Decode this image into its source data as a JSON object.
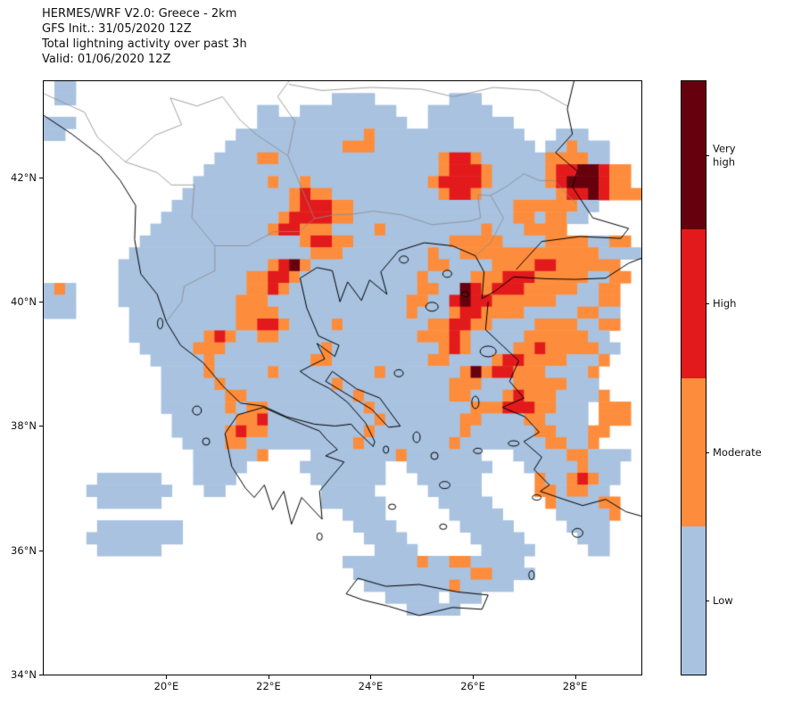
{
  "figure": {
    "title_lines": [
      "HERMES/WRF V2.0: Greece - 2km",
      "GFS Init.: 31/05/2020 12Z",
      "Total lightning activity over past 3h",
      "Valid: 01/06/2020 12Z"
    ]
  },
  "axes": {
    "x_ticks": [
      {
        "label": "20°E",
        "lon": 20
      },
      {
        "label": "22°E",
        "lon": 22
      },
      {
        "label": "24°E",
        "lon": 24
      },
      {
        "label": "26°E",
        "lon": 26
      },
      {
        "label": "28°E",
        "lon": 28
      }
    ],
    "y_ticks": [
      {
        "label": "42°N",
        "lat": 42
      },
      {
        "label": "40°N",
        "lat": 40
      },
      {
        "label": "38°N",
        "lat": 38
      },
      {
        "label": "36°N",
        "lat": 36
      },
      {
        "label": "34°N",
        "lat": 34
      }
    ]
  },
  "colorbar": {
    "segments": [
      {
        "label": "Very\nhigh",
        "color": "#67000d",
        "category": "very_high"
      },
      {
        "label": "High",
        "color": "#e31a1c",
        "category": "high"
      },
      {
        "label": "Moderate",
        "color": "#fd8d3c",
        "category": "moderate"
      },
      {
        "label": "Low",
        "color": "#a8c2e0",
        "category": "low"
      }
    ]
  },
  "chart_data": {
    "type": "heatmap",
    "title": "Total lightning activity over past 3h",
    "model": "HERMES/WRF V2.0: Greece - 2km",
    "init": "GFS Init.: 31/05/2020 12Z",
    "valid": "Valid: 01/06/2020 12Z",
    "legend": [
      "Very high",
      "High",
      "Moderate",
      "Low"
    ],
    "projection": {
      "lon_min": 17.6,
      "lon_max": 29.3,
      "lat_min": 34.0,
      "lat_max": 43.55
    },
    "colors": {
      "l": "#a8c2e0",
      "m": "#fd8d3c",
      "h": "#e31a1c",
      "v": "#67000d"
    },
    "grid": {
      "cols": 56,
      "rows": 50,
      "encoding": "comma separated run-length tokens 'Nc'; c: .=none l=low m=moderate h=high v=very_high",
      "rows_rle": [
        "1.,2l,53.",
        "1.,2l,24.,4l,7.,3l,15.",
        "20.,2l,2.,9l,3.,6l,14.",
        "3l,17.,14l,2.,8l,12.",
        "2l,16.,12l,1m,14l,3.,3l,5.",
        "17.,11l,3m,15l,1.,2l,1m,3l,3.",
        "16.,4l,2m,15l,1m,2h,1m,6l,4m,2l,3.",
        "15.,22l,1m,3h,1m,5l,1m,2h,2v,1h,2m,1.",
        "14.,7l,1m,2l,1m,11l,1m,4h,1m,5l,1m,1h,3v,1h,2m,1.",
        "13.,10l,1m,1h,2m,10l,1m,2h,1m,7l,1m,2h,1v,1h,3m",
        "12.,11l,1m,3h,2m,15l,6m,2l,4.",
        "11.,11l,1m,4h,2m,15l,2m,1l,2m,2l,5.",
        "10.,11l,1m,2h,3m,4l,1m,9l,1m,3l,4m,7.",
        "9.,15l,1m,2h,2m,9l,5m,4l,4m,2l,2m,1.",
        "8.,17l,3m,8l,1m,2l,13m,4l",
        "7.,14l,1m,1h,1v,1m,11l,2m,4l,4m,2h,6m,2.",
        "7.,12l,2m,2h,1m,11l,1m,4l,3m,3h,5m,2l,2m,1.",
        "1l,1m,1l,4.,12l,2m,1h,1m,12l,2m,2l,1v,1h,1m,3h,5m,2l,2m,2.",
        "3l,4.,11l,3m,13l,2m,2l,1h,1v,2h,6m,4l,2m,2.",
        "3l,5.,10l,4m,12l,1m,3l,1m,2h,4m,5l,2m,2l,2.",
        "8.,10l,2m,2h,1m,4l,1m,8l,2m,2h,2m,4l,4m,2l,2m,2.",
        "8.,7l,1m,1h,1m,2l,2m,13l,3m,1h,1m,5l,6m,2l,3.",
        "9.,5l,3m,9l,1m,10l,1m,1h,1m,4l,2m,1h,5m,2l,2.",
        "10.,5l,1m,9l,2m,9l,2m,4l,1m,2h,4m,3l,1m,3.",
        "11.,4l,1m,5l,1m,9l,1m,7l,1m,1v,1m,2h,3m,4l,1m,4.",
        "11.,5l,1m,10l,1m,10l,3m,3l,5m,3l,4.",
        "11.,6l,2m,10l,1m,8l,2m,3l,1m,1h,3m,4l,1m,3.",
        "11.,6l,1m,1l,2m,9l,1m,9l,3m,3h,2m,3l,1.,3m,1.",
        "12.,6l,2m,1h,10l,1m,7l,2m,4l,2m,4l,1.,3m,1.",
        "12.,5l,1m,1h,2m,9l,1m,8l,1m,6l,2m,3l,2m,3.",
        "13.,4l,2m,10l,1m,8l,1m,8l,2m,2l,1m,4.",
        "14.,6l,1m,4.,8l,1m,7l,3.,5l,2m,4l,1.",
        "14.,5l,5.,8l,2.,8l,3.,5l,1m,3l,2.",
        "5.,6l,3.,4l,7.,7l,3.,6l,5.,1m,2l,1m,1h,1m,2l,2.",
        "4.,8l,3.,2l,9.,5l,5.,5l,5.,2m,1l,2m,2l,3.",
        "5.,6l,15.,6l,5.,5l,5.,1m,4l,2m,2.",
        "28.,4l,6.,5l,5.,5l,1m,2.",
        "5.,8l,16.,4l,6.,5l,5.,4l,3.",
        "4.,9l,17.,4l,6.,5l,5.,3l,3.",
        "5.,6l,20.,4l,6.,5l,5.,2l,3.",
        "28.,7l,1m,2l,2m,5l,11.",
        "29.,11l,2m,4l,10.",
        "30.,8l,1m,5l,12.",
        "32.,5l,1.,3l,15.",
        "34.,5l,17.",
        "56.",
        "56.",
        "56.",
        "56.",
        "56."
      ]
    }
  },
  "map_background": {
    "coastlines": [
      [
        [
          17.6,
          43.0
        ],
        [
          18.15,
          42.7
        ],
        [
          18.7,
          42.35
        ],
        [
          19.1,
          41.95
        ],
        [
          19.4,
          41.55
        ],
        [
          19.38,
          41.0
        ],
        [
          19.5,
          40.45
        ],
        [
          19.82,
          40.12
        ],
        [
          20.0,
          39.68
        ],
        [
          20.28,
          39.3
        ],
        [
          20.72,
          39.02
        ],
        [
          21.1,
          38.65
        ],
        [
          21.45,
          38.37
        ],
        [
          21.9,
          38.32
        ],
        [
          22.35,
          38.15
        ],
        [
          22.9,
          38.03
        ],
        [
          23.3,
          38.0
        ],
        [
          23.62,
          38.03
        ],
        [
          23.72,
          37.93
        ],
        [
          24.05,
          37.67
        ],
        [
          24.08,
          37.75
        ],
        [
          23.9,
          38.05
        ],
        [
          23.55,
          38.38
        ],
        [
          23.2,
          38.6
        ],
        [
          22.85,
          38.75
        ],
        [
          22.62,
          38.88
        ],
        [
          22.85,
          38.98
        ],
        [
          23.1,
          39.08
        ],
        [
          22.95,
          39.33
        ],
        [
          23.3,
          39.12
        ],
        [
          23.38,
          39.3
        ],
        [
          22.98,
          39.45
        ],
        [
          22.75,
          39.9
        ],
        [
          22.62,
          40.38
        ],
        [
          22.95,
          40.55
        ],
        [
          23.25,
          40.5
        ],
        [
          23.4,
          40.0
        ],
        [
          23.55,
          40.32
        ],
        [
          23.82,
          40.02
        ],
        [
          23.98,
          40.35
        ],
        [
          24.32,
          40.12
        ],
        [
          24.2,
          40.48
        ],
        [
          24.55,
          40.82
        ],
        [
          25.05,
          40.95
        ],
        [
          25.6,
          40.9
        ],
        [
          26.05,
          40.74
        ]
      ],
      [
        [
          26.05,
          40.74
        ],
        [
          26.22,
          40.48
        ],
        [
          26.18,
          40.05
        ],
        [
          26.45,
          40.18
        ],
        [
          26.8,
          40.4
        ],
        [
          27.45,
          40.37
        ],
        [
          28.0,
          40.36
        ],
        [
          28.6,
          40.38
        ],
        [
          29.05,
          40.62
        ],
        [
          29.3,
          40.7
        ]
      ],
      [
        [
          26.85,
          40.52
        ],
        [
          27.35,
          40.97
        ],
        [
          28.1,
          41.05
        ],
        [
          28.9,
          41.02
        ],
        [
          29.05,
          41.18
        ],
        [
          28.35,
          41.35
        ],
        [
          27.95,
          41.85
        ],
        [
          28.05,
          42.1
        ],
        [
          27.62,
          42.4
        ],
        [
          27.95,
          42.7
        ],
        [
          27.85,
          43.1
        ],
        [
          27.98,
          43.55
        ]
      ],
      [
        [
          26.3,
          40.0
        ],
        [
          26.25,
          39.55
        ],
        [
          26.6,
          39.28
        ],
        [
          26.9,
          39.05
        ],
        [
          26.72,
          38.72
        ],
        [
          27.0,
          38.45
        ],
        [
          26.58,
          38.3
        ],
        [
          27.02,
          38.15
        ],
        [
          27.3,
          37.9
        ],
        [
          27.0,
          37.75
        ],
        [
          27.35,
          37.5
        ],
        [
          27.2,
          37.3
        ],
        [
          27.5,
          37.05
        ],
        [
          27.32,
          36.95
        ],
        [
          27.78,
          36.82
        ],
        [
          28.15,
          36.72
        ],
        [
          28.6,
          36.82
        ],
        [
          29.0,
          36.62
        ],
        [
          29.3,
          36.55
        ]
      ],
      [
        [
          23.0,
          37.92
        ],
        [
          22.45,
          38.1
        ],
        [
          21.9,
          38.3
        ],
        [
          21.4,
          38.18
        ],
        [
          21.15,
          37.88
        ],
        [
          21.28,
          37.35
        ],
        [
          21.55,
          37.0
        ],
        [
          21.72,
          36.85
        ],
        [
          21.92,
          37.05
        ],
        [
          22.08,
          36.65
        ],
        [
          22.3,
          36.95
        ],
        [
          22.45,
          36.42
        ],
        [
          22.65,
          36.85
        ],
        [
          23.05,
          36.5
        ],
        [
          23.0,
          36.95
        ],
        [
          23.2,
          37.15
        ],
        [
          23.48,
          37.42
        ],
        [
          23.12,
          37.52
        ],
        [
          23.35,
          37.62
        ],
        [
          23.12,
          37.8
        ],
        [
          23.0,
          37.92
        ]
      ],
      [
        [
          23.25,
          38.88
        ],
        [
          23.72,
          38.6
        ],
        [
          24.18,
          38.45
        ],
        [
          24.58,
          38.0
        ],
        [
          24.35,
          37.98
        ],
        [
          24.02,
          38.27
        ],
        [
          23.52,
          38.52
        ],
        [
          23.12,
          38.72
        ],
        [
          23.25,
          38.88
        ]
      ],
      [
        [
          23.52,
          35.3
        ],
        [
          23.75,
          35.55
        ],
        [
          24.3,
          35.42
        ],
        [
          24.95,
          35.45
        ],
        [
          25.7,
          35.33
        ],
        [
          26.3,
          35.28
        ],
        [
          26.18,
          35.05
        ],
        [
          25.6,
          35.08
        ],
        [
          24.95,
          34.95
        ],
        [
          24.35,
          35.1
        ],
        [
          23.85,
          35.2
        ],
        [
          23.52,
          35.3
        ]
      ]
    ],
    "borders": [
      [
        [
          17.6,
          43.35
        ],
        [
          18.4,
          43.05
        ],
        [
          18.65,
          42.65
        ],
        [
          19.2,
          42.25
        ],
        [
          19.78,
          42.68
        ],
        [
          20.3,
          42.85
        ],
        [
          20.08,
          43.28
        ],
        [
          20.6,
          43.15
        ],
        [
          21.1,
          43.3
        ],
        [
          21.45,
          42.92
        ],
        [
          21.78,
          42.68
        ],
        [
          22.38,
          42.35
        ],
        [
          22.52,
          42.9
        ],
        [
          22.18,
          43.3
        ],
        [
          22.4,
          43.55
        ]
      ],
      [
        [
          19.2,
          42.25
        ],
        [
          19.82,
          42.08
        ],
        [
          20.1,
          41.88
        ],
        [
          20.55,
          41.88
        ],
        [
          20.5,
          41.35
        ],
        [
          20.95,
          40.9
        ],
        [
          20.95,
          40.5
        ],
        [
          20.35,
          40.25
        ],
        [
          20.3,
          40.0
        ],
        [
          20.0,
          39.68
        ]
      ],
      [
        [
          20.95,
          40.9
        ],
        [
          21.6,
          40.9
        ],
        [
          22.1,
          41.13
        ],
        [
          22.6,
          41.13
        ],
        [
          22.9,
          41.34
        ],
        [
          23.3,
          41.4
        ],
        [
          23.65,
          41.41
        ],
        [
          24.05,
          41.46
        ],
        [
          24.6,
          41.4
        ],
        [
          25.2,
          41.24
        ],
        [
          25.95,
          41.3
        ],
        [
          26.15,
          41.35
        ],
        [
          26.1,
          41.72
        ],
        [
          26.35,
          41.71
        ],
        [
          26.6,
          41.35
        ],
        [
          26.35,
          40.95
        ],
        [
          26.05,
          40.74
        ]
      ],
      [
        [
          22.38,
          42.35
        ],
        [
          22.9,
          41.34
        ]
      ],
      [
        [
          26.35,
          41.71
        ],
        [
          26.65,
          41.85
        ],
        [
          27.0,
          42.06
        ],
        [
          27.3,
          41.95
        ],
        [
          27.6,
          41.95
        ],
        [
          28.02,
          41.58
        ]
      ],
      [
        [
          22.4,
          43.5
        ],
        [
          23.05,
          43.4
        ],
        [
          24.0,
          43.45
        ],
        [
          25.0,
          43.42
        ],
        [
          25.62,
          43.3
        ],
        [
          26.4,
          43.45
        ],
        [
          27.3,
          43.4
        ],
        [
          27.85,
          43.15
        ]
      ]
    ],
    "islands": [
      [
        19.88,
        39.65,
        3,
        6
      ],
      [
        20.6,
        38.25,
        5,
        5
      ],
      [
        20.78,
        37.75,
        4,
        4
      ],
      [
        26.3,
        39.2,
        9,
        6
      ],
      [
        26.05,
        38.38,
        4,
        7
      ],
      [
        26.8,
        37.72,
        6,
        3
      ],
      [
        25.2,
        39.92,
        7,
        5
      ],
      [
        24.65,
        40.68,
        5,
        4
      ],
      [
        25.5,
        40.45,
        5,
        4
      ],
      [
        24.55,
        38.85,
        5,
        4
      ],
      [
        24.9,
        37.82,
        4,
        6
      ],
      [
        25.25,
        37.52,
        4,
        4
      ],
      [
        25.45,
        37.05,
        6,
        4
      ],
      [
        24.42,
        36.7,
        4,
        3
      ],
      [
        25.42,
        36.38,
        4,
        3
      ],
      [
        27.25,
        36.85,
        5,
        3
      ],
      [
        28.05,
        36.28,
        6,
        5
      ],
      [
        27.15,
        35.6,
        3,
        5
      ],
      [
        23.0,
        36.22,
        3,
        4
      ],
      [
        26.1,
        37.6,
        5,
        3
      ],
      [
        24.3,
        37.62,
        3,
        4
      ],
      [
        25.85,
        40.12,
        4,
        3
      ]
    ]
  }
}
